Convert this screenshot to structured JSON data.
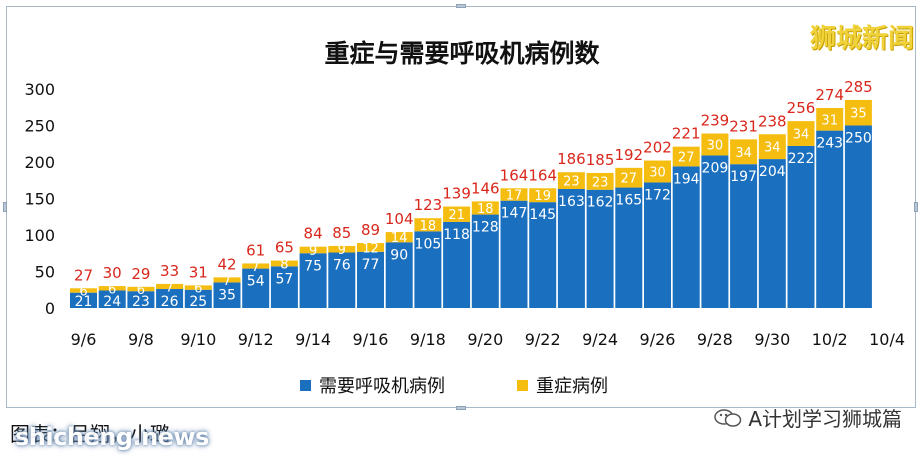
{
  "watermark_top": "狮城新闻",
  "caption": "图表：吕翔，小璐",
  "url_watermark": "shicheng.news",
  "wechat_label": "A计划学习狮城篇",
  "colors": {
    "blue": "#1a6fbf",
    "yellow": "#f5bd0f",
    "total_label": "#d9271c",
    "axis_text": "#111111"
  },
  "chart_data": {
    "type": "bar",
    "stacked": true,
    "title": "重症与需要呼吸机病例数",
    "ylim": [
      0,
      300
    ],
    "y_ticks": [
      0,
      50,
      100,
      150,
      200,
      250,
      300
    ],
    "x_tick_labels": [
      "9/6",
      "9/8",
      "9/10",
      "9/12",
      "9/14",
      "9/16",
      "9/18",
      "9/20",
      "9/22",
      "9/24",
      "9/26",
      "9/28",
      "9/30",
      "10/2",
      "10/4"
    ],
    "categories": [
      "9/6",
      "9/7",
      "9/8",
      "9/9",
      "9/10",
      "9/11",
      "9/12",
      "9/13",
      "9/14",
      "9/15",
      "9/16",
      "9/17",
      "9/18",
      "9/19",
      "9/20",
      "9/21",
      "9/22",
      "9/23",
      "9/24",
      "9/25",
      "9/26",
      "9/27",
      "9/28",
      "9/29",
      "9/30",
      "10/1",
      "10/2",
      "10/3"
    ],
    "series": [
      {
        "name": "需要呼吸机病例",
        "color": "#1a6fbf",
        "values": [
          21,
          24,
          23,
          26,
          25,
          35,
          54,
          57,
          75,
          76,
          77,
          90,
          105,
          118,
          128,
          147,
          145,
          163,
          162,
          165,
          172,
          194,
          209,
          197,
          204,
          222,
          243,
          250
        ]
      },
      {
        "name": "重症病例",
        "color": "#f5bd0f",
        "values": [
          6,
          6,
          6,
          7,
          6,
          7,
          7,
          8,
          9,
          9,
          12,
          14,
          18,
          21,
          18,
          17,
          19,
          23,
          23,
          27,
          30,
          27,
          30,
          34,
          34,
          34,
          31,
          35
        ]
      }
    ],
    "totals": [
      27,
      30,
      29,
      33,
      31,
      42,
      61,
      65,
      84,
      85,
      89,
      104,
      123,
      139,
      146,
      164,
      164,
      186,
      185,
      192,
      202,
      221,
      239,
      231,
      238,
      256,
      274,
      285
    ],
    "legend": [
      "需要呼吸机病例",
      "重症病例"
    ],
    "legend_position": "bottom"
  }
}
